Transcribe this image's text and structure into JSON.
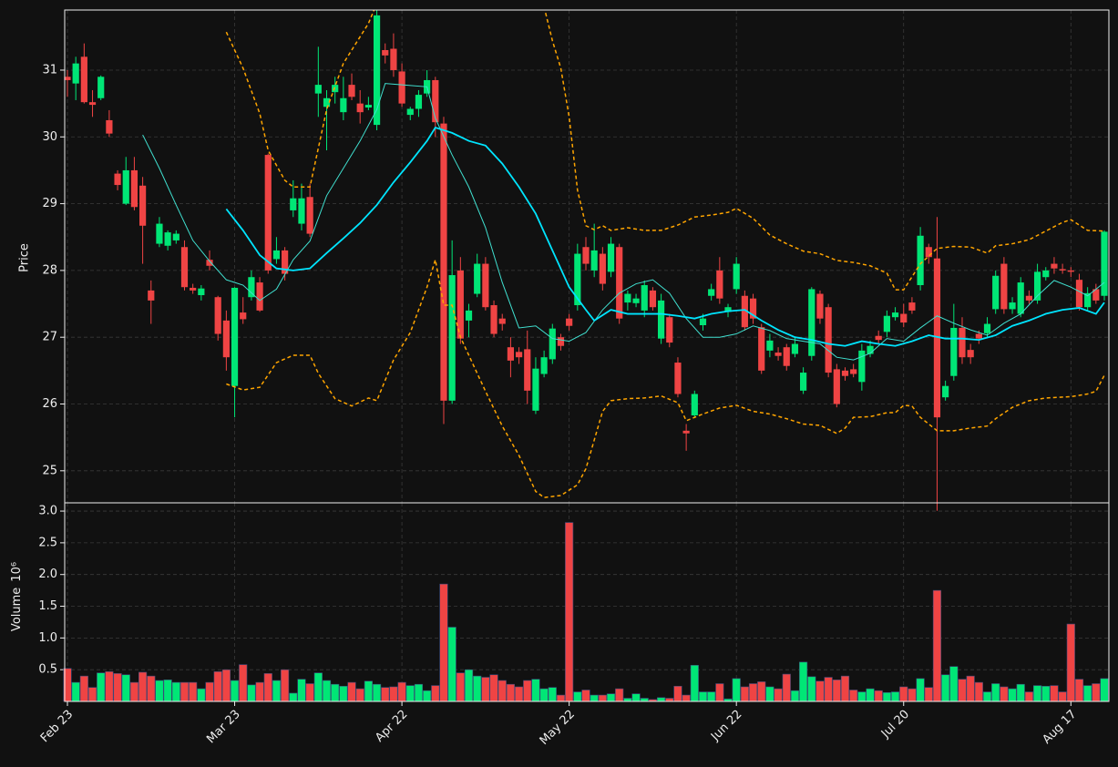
{
  "chart_data": {
    "type": "candlestick",
    "ylabel": "Price",
    "ylim": [
      24.52,
      31.9
    ],
    "yticks": [
      25,
      26,
      27,
      28,
      29,
      30,
      31
    ],
    "grid": true,
    "up_color": "#00e676",
    "down_color": "#ef4444",
    "categories": [
      "Feb 23",
      null,
      null,
      null,
      null,
      null,
      null,
      null,
      null,
      null,
      null,
      null,
      null,
      null,
      null,
      null,
      null,
      null,
      null,
      null,
      "Mar 23",
      null,
      null,
      null,
      null,
      null,
      null,
      null,
      null,
      null,
      null,
      null,
      null,
      null,
      null,
      null,
      null,
      null,
      null,
      null,
      "Apr 22",
      null,
      null,
      null,
      null,
      null,
      null,
      null,
      null,
      null,
      null,
      null,
      null,
      null,
      null,
      null,
      null,
      null,
      null,
      null,
      "May 22",
      null,
      null,
      null,
      null,
      null,
      null,
      null,
      null,
      null,
      null,
      null,
      null,
      null,
      null,
      null,
      null,
      null,
      null,
      null,
      "Jun 22",
      null,
      null,
      null,
      null,
      null,
      null,
      null,
      null,
      null,
      null,
      null,
      null,
      null,
      null,
      null,
      null,
      null,
      null,
      null,
      "Jul 20",
      null,
      null,
      null,
      null,
      null,
      null,
      null,
      null,
      null,
      null,
      null,
      null,
      null,
      null,
      null,
      null,
      null,
      null,
      null,
      "Aug 17",
      null,
      null,
      null,
      null
    ],
    "open": [
      30.9,
      30.8,
      31.2,
      30.52,
      30.58,
      30.25,
      29.45,
      29.0,
      29.5,
      29.27,
      27.7,
      28.4,
      28.37,
      28.45,
      28.35,
      27.74,
      27.63,
      28.16,
      27.6,
      27.25,
      26.27,
      27.37,
      27.6,
      27.82,
      29.73,
      28.17,
      28.3,
      28.9,
      28.7,
      29.1,
      30.65,
      30.45,
      30.67,
      30.37,
      30.78,
      30.5,
      30.44,
      30.18,
      31.3,
      31.32,
      30.98,
      30.33,
      30.42,
      30.65,
      30.85,
      30.2,
      26.05,
      28.0,
      27.25,
      27.65,
      28.1,
      27.48,
      27.28,
      26.85,
      26.78,
      26.82,
      25.9,
      26.45,
      26.67,
      27.0,
      27.28,
      27.48,
      28.35,
      28.0,
      28.25,
      27.98,
      28.35,
      27.52,
      27.51,
      27.4,
      27.7,
      26.98,
      27.3,
      26.62,
      25.6,
      25.83,
      27.18,
      27.62,
      28.0,
      27.38,
      27.72,
      27.62,
      27.58,
      27.15,
      26.8,
      26.77,
      26.85,
      26.75,
      26.2,
      26.72,
      27.65,
      27.45,
      26.52,
      26.5,
      26.52,
      26.33,
      26.75,
      27.02,
      27.08,
      27.3,
      27.35,
      27.52,
      27.78,
      28.35,
      28.18,
      26.1,
      26.42,
      27.14,
      26.81,
      27.05,
      27.06,
      27.42,
      28.1,
      27.42,
      27.35,
      27.62,
      27.55,
      27.9,
      28.1,
      28.02,
      28.0,
      27.86,
      27.45,
      27.72,
      27.62
    ],
    "high": [
      31.0,
      31.2,
      31.4,
      30.7,
      30.92,
      30.4,
      29.5,
      29.7,
      29.7,
      29.4,
      27.85,
      28.8,
      28.6,
      28.6,
      28.45,
      27.8,
      27.78,
      28.3,
      27.62,
      27.4,
      27.75,
      27.6,
      28.0,
      27.9,
      29.75,
      28.5,
      28.35,
      29.35,
      29.3,
      29.3,
      31.35,
      30.7,
      30.9,
      30.9,
      30.95,
      30.7,
      30.6,
      31.9,
      31.4,
      31.55,
      31.1,
      30.45,
      30.7,
      31.0,
      30.9,
      30.3,
      28.45,
      28.2,
      27.5,
      28.25,
      28.2,
      27.55,
      27.35,
      27.0,
      26.85,
      27.1,
      26.7,
      26.8,
      27.2,
      27.05,
      27.35,
      28.4,
      28.5,
      28.7,
      28.35,
      28.5,
      28.4,
      27.7,
      27.65,
      27.85,
      27.75,
      27.65,
      27.35,
      26.7,
      25.7,
      26.2,
      27.35,
      27.8,
      28.2,
      27.5,
      28.2,
      27.7,
      27.65,
      27.2,
      27.05,
      26.85,
      26.9,
      27.0,
      26.55,
      27.75,
      27.7,
      27.5,
      26.6,
      26.55,
      26.6,
      26.9,
      26.95,
      27.1,
      27.4,
      27.45,
      27.5,
      27.6,
      28.65,
      28.4,
      28.8,
      26.35,
      27.5,
      27.3,
      26.9,
      27.1,
      27.3,
      28.0,
      28.2,
      27.6,
      27.9,
      27.7,
      28.1,
      28.05,
      28.2,
      28.1,
      28.05,
      27.95,
      27.75,
      27.8,
      28.6
    ],
    "low": [
      30.6,
      30.55,
      30.5,
      30.3,
      30.55,
      30.0,
      29.2,
      28.98,
      28.9,
      28.1,
      27.2,
      28.35,
      28.3,
      28.4,
      27.7,
      27.65,
      27.55,
      28.0,
      26.95,
      26.5,
      25.8,
      27.2,
      27.55,
      27.38,
      27.95,
      28.1,
      27.85,
      28.8,
      28.6,
      28.5,
      30.3,
      29.8,
      30.5,
      30.25,
      30.55,
      30.2,
      30.4,
      30.1,
      31.1,
      30.9,
      30.45,
      30.25,
      30.3,
      30.6,
      30.0,
      25.7,
      26.0,
      26.9,
      27.0,
      27.6,
      27.4,
      27.0,
      27.1,
      26.4,
      26.6,
      26.0,
      25.85,
      26.4,
      26.6,
      26.8,
      27.1,
      27.4,
      28.0,
      27.9,
      27.7,
      27.9,
      27.2,
      27.4,
      27.45,
      27.3,
      27.4,
      26.9,
      26.85,
      26.1,
      25.3,
      25.8,
      27.1,
      27.55,
      27.5,
      27.3,
      27.65,
      27.1,
      27.2,
      26.45,
      26.7,
      26.65,
      26.5,
      26.7,
      26.15,
      26.65,
      27.2,
      26.4,
      25.95,
      26.35,
      26.4,
      26.2,
      26.7,
      26.9,
      27.0,
      27.25,
      27.15,
      27.35,
      27.7,
      28.1,
      24.4,
      26.05,
      26.35,
      26.6,
      26.6,
      26.9,
      27.0,
      27.35,
      27.35,
      27.35,
      27.3,
      27.5,
      27.5,
      27.85,
      27.95,
      27.95,
      27.9,
      27.4,
      27.4,
      27.5,
      27.55
    ],
    "close": [
      30.85,
      31.1,
      30.52,
      30.48,
      30.9,
      30.05,
      29.28,
      29.5,
      28.95,
      28.67,
      27.55,
      28.7,
      28.57,
      28.55,
      27.75,
      27.7,
      27.73,
      28.07,
      27.05,
      26.7,
      27.74,
      27.27,
      27.9,
      27.4,
      28.0,
      28.3,
      27.95,
      29.08,
      29.08,
      28.55,
      30.78,
      30.58,
      30.78,
      30.58,
      30.6,
      30.37,
      30.48,
      31.82,
      31.22,
      31.0,
      30.5,
      30.42,
      30.63,
      30.85,
      30.22,
      26.05,
      27.93,
      26.98,
      27.4,
      28.1,
      27.45,
      27.05,
      27.2,
      26.65,
      26.7,
      26.2,
      26.53,
      26.7,
      27.13,
      26.87,
      27.17,
      28.25,
      28.1,
      28.3,
      27.8,
      28.4,
      27.28,
      27.65,
      27.58,
      27.78,
      27.45,
      27.55,
      26.92,
      26.15,
      25.56,
      26.15,
      27.28,
      27.72,
      27.58,
      27.45,
      28.1,
      27.15,
      27.28,
      26.5,
      26.95,
      26.72,
      26.57,
      26.9,
      26.47,
      27.72,
      27.28,
      26.47,
      26.0,
      26.42,
      26.45,
      26.8,
      26.87,
      26.96,
      27.32,
      27.37,
      27.22,
      27.4,
      28.52,
      28.2,
      25.8,
      26.27,
      27.14,
      26.7,
      26.7,
      26.98,
      27.2,
      27.92,
      27.42,
      27.52,
      27.82,
      27.55,
      27.98,
      28.0,
      28.03,
      28.0,
      27.98,
      27.45,
      27.66,
      27.55,
      28.58
    ],
    "overlays": [
      {
        "type": "line",
        "color": "#40e0d0",
        "width": 1,
        "dashed": false,
        "x": [
          9,
          11,
          13,
          15,
          17,
          19,
          21,
          23,
          25,
          27,
          29,
          31,
          33,
          35,
          37,
          38,
          40,
          43,
          44,
          46,
          48,
          50,
          52,
          54,
          56,
          58,
          60,
          62,
          64,
          66,
          68,
          70,
          72,
          74,
          76,
          78,
          80,
          82,
          84,
          86,
          88,
          90,
          92,
          94,
          96,
          98,
          100,
          102,
          104,
          106,
          108,
          110,
          112,
          114,
          116,
          118,
          120,
          122,
          124
        ],
        "values": [
          30.03,
          29.53,
          28.98,
          28.45,
          28.14,
          27.86,
          27.78,
          27.55,
          27.72,
          28.16,
          28.44,
          29.12,
          29.53,
          29.94,
          30.41,
          30.8,
          30.78,
          30.75,
          30.28,
          29.73,
          29.25,
          28.64,
          27.82,
          27.14,
          27.17,
          26.98,
          26.94,
          27.07,
          27.41,
          27.66,
          27.8,
          27.86,
          27.66,
          27.28,
          27.0,
          27.0,
          27.05,
          27.17,
          27.1,
          26.98,
          26.94,
          26.9,
          26.7,
          26.66,
          26.76,
          26.98,
          26.94,
          27.14,
          27.32,
          27.21,
          27.11,
          27.03,
          27.21,
          27.35,
          27.62,
          27.85,
          27.75,
          27.62,
          27.82
        ]
      },
      {
        "type": "line",
        "color": "#00e5ff",
        "width": 1.8,
        "dashed": false,
        "x": [
          19,
          21,
          23,
          25,
          27,
          29,
          31,
          33,
          35,
          37,
          39,
          41,
          43,
          44,
          46,
          48,
          50,
          52,
          54,
          56,
          58,
          60,
          62,
          63,
          65,
          67,
          69,
          71,
          73,
          75,
          77,
          79,
          81,
          83,
          85,
          87,
          89,
          91,
          93,
          95,
          97,
          99,
          101,
          103,
          105,
          107,
          109,
          111,
          113,
          115,
          117,
          119,
          121,
          123,
          124
        ],
        "values": [
          28.92,
          28.6,
          28.23,
          28.03,
          28.0,
          28.03,
          28.26,
          28.48,
          28.71,
          28.98,
          29.32,
          29.62,
          29.94,
          30.14,
          30.06,
          29.94,
          29.87,
          29.6,
          29.25,
          28.85,
          28.3,
          27.75,
          27.41,
          27.25,
          27.41,
          27.35,
          27.35,
          27.35,
          27.32,
          27.28,
          27.35,
          27.39,
          27.41,
          27.25,
          27.11,
          27.0,
          26.96,
          26.9,
          26.87,
          26.94,
          26.9,
          26.87,
          26.94,
          27.03,
          26.98,
          26.98,
          26.96,
          27.03,
          27.17,
          27.25,
          27.35,
          27.41,
          27.44,
          27.35,
          27.52
        ]
      },
      {
        "type": "line",
        "color": "#ffa500",
        "width": 1.5,
        "dashed": true,
        "x": [
          19,
          21,
          23,
          24,
          26,
          27,
          29,
          31,
          33,
          35,
          36,
          37,
          38,
          57,
          58,
          59,
          60,
          61,
          62,
          63,
          64,
          65,
          67,
          69,
          71,
          73,
          75,
          77,
          79,
          80,
          82,
          84,
          86,
          88,
          90,
          92,
          94,
          96,
          98,
          99,
          100,
          102,
          104,
          106,
          108,
          110,
          111,
          113,
          115,
          117,
          119,
          120,
          122,
          124
        ],
        "values": [
          31.57,
          31.03,
          30.35,
          29.8,
          29.35,
          29.25,
          29.25,
          30.41,
          31.1,
          31.5,
          31.7,
          32.0,
          null,
          31.95,
          31.44,
          31.03,
          30.3,
          29.2,
          28.67,
          28.61,
          28.67,
          28.6,
          28.64,
          28.6,
          28.6,
          28.68,
          28.8,
          28.83,
          28.87,
          28.93,
          28.78,
          28.53,
          28.4,
          28.29,
          28.25,
          28.15,
          28.12,
          28.07,
          27.96,
          27.71,
          27.71,
          28.1,
          28.33,
          28.36,
          28.35,
          28.26,
          28.37,
          28.4,
          28.46,
          28.59,
          28.72,
          28.76,
          28.6,
          28.59
        ]
      },
      {
        "type": "line",
        "color": "#ffa500",
        "width": 1.5,
        "dashed": true,
        "x": [
          19,
          21,
          23,
          25,
          27,
          29,
          30,
          32,
          34,
          36,
          37,
          39,
          41,
          43,
          44,
          45,
          46,
          47,
          48,
          50,
          52,
          54,
          56,
          57,
          59,
          61,
          62,
          64,
          65,
          67,
          69,
          71,
          73,
          74,
          76,
          78,
          80,
          82,
          84,
          86,
          88,
          90,
          92,
          93,
          94,
          96,
          98,
          99,
          100,
          101,
          102,
          104,
          106,
          108,
          110,
          111,
          113,
          115,
          117,
          120,
          122,
          123,
          124
        ],
        "values": [
          26.3,
          26.21,
          26.25,
          26.62,
          26.73,
          26.73,
          26.46,
          26.08,
          25.97,
          26.09,
          26.05,
          26.66,
          27.07,
          27.75,
          28.16,
          27.48,
          27.48,
          27.0,
          26.73,
          26.19,
          25.67,
          25.23,
          24.69,
          24.6,
          24.63,
          24.79,
          25.03,
          25.89,
          26.05,
          26.08,
          26.09,
          26.12,
          26.02,
          25.75,
          25.85,
          25.94,
          25.98,
          25.89,
          25.85,
          25.78,
          25.7,
          25.68,
          25.56,
          25.64,
          25.8,
          25.81,
          25.87,
          25.87,
          25.98,
          25.97,
          25.8,
          25.6,
          25.6,
          25.64,
          25.67,
          25.78,
          25.95,
          26.05,
          26.09,
          26.11,
          26.15,
          26.19,
          26.43
        ]
      }
    ],
    "volume": {
      "type": "bar",
      "ylabel": "Volume",
      "ylabel_power": "10⁶",
      "ylim": [
        0,
        3.13
      ],
      "yticks": [
        0.5,
        {
          "value": 1,
          "label": "1.0"
        },
        1.5,
        {
          "value": 2,
          "label": "2.0"
        },
        2.5,
        {
          "value": 3,
          "label": "3.0"
        }
      ],
      "values": [
        0.52,
        0.3,
        0.4,
        0.22,
        0.45,
        0.47,
        0.44,
        0.42,
        0.3,
        0.46,
        0.4,
        0.33,
        0.34,
        0.3,
        0.3,
        0.3,
        0.2,
        0.3,
        0.47,
        0.5,
        0.33,
        0.58,
        0.26,
        0.3,
        0.44,
        0.33,
        0.5,
        0.13,
        0.35,
        0.28,
        0.45,
        0.33,
        0.27,
        0.24,
        0.3,
        0.2,
        0.32,
        0.27,
        0.22,
        0.23,
        0.3,
        0.25,
        0.27,
        0.17,
        0.25,
        1.85,
        1.17,
        0.45,
        0.5,
        0.4,
        0.38,
        0.42,
        0.33,
        0.27,
        0.23,
        0.33,
        0.35,
        0.2,
        0.22,
        0.1,
        2.82,
        0.15,
        0.18,
        0.1,
        0.1,
        0.12,
        0.2,
        0.05,
        0.12,
        0.05,
        0.03,
        0.06,
        0.05,
        0.24,
        0.1,
        0.57,
        0.15,
        0.15,
        0.28,
        0.04,
        0.36,
        0.23,
        0.28,
        0.31,
        0.23,
        0.2,
        0.43,
        0.17,
        0.62,
        0.39,
        0.32,
        0.38,
        0.34,
        0.4,
        0.18,
        0.15,
        0.2,
        0.17,
        0.14,
        0.15,
        0.23,
        0.2,
        0.36,
        0.22,
        1.75,
        0.42,
        0.55,
        0.35,
        0.4,
        0.3,
        0.15,
        0.28,
        0.23,
        0.2,
        0.27,
        0.15,
        0.25,
        0.24,
        0.25,
        0.15,
        1.22,
        0.35,
        0.25,
        0.28,
        0.36
      ]
    }
  }
}
